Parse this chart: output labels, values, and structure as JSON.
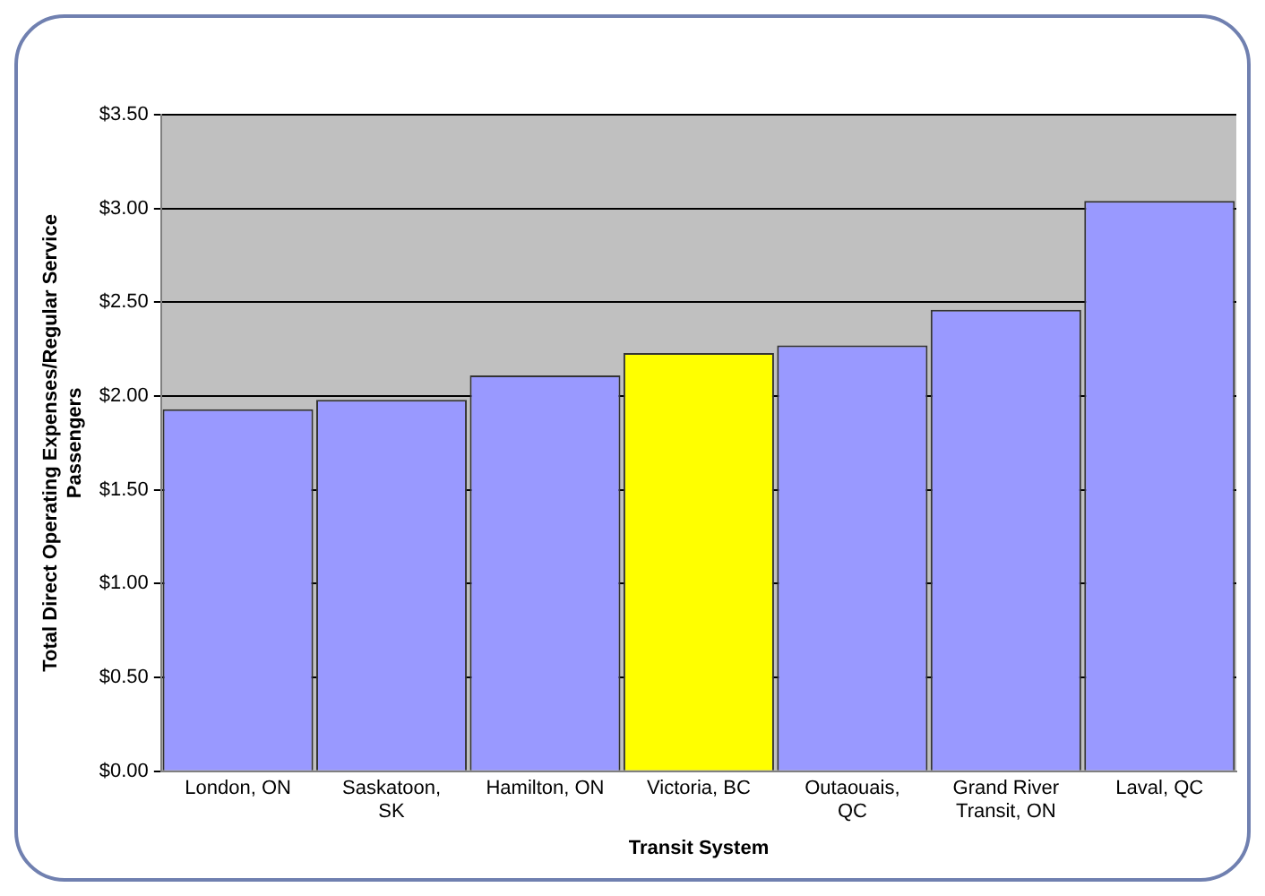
{
  "chart_data": {
    "type": "bar",
    "xlabel": "Transit System",
    "ylabel": "Total Direct Operating Expenses/Regular Service Passengers",
    "categories": [
      "London, ON",
      "Saskatoon, SK",
      "Hamilton, ON",
      "Victoria, BC",
      "Outaouais, QC",
      "Grand River Transit, ON",
      "Laval, QC"
    ],
    "values": [
      1.93,
      1.98,
      2.11,
      2.23,
      2.27,
      2.46,
      3.04
    ],
    "colors": [
      "#9999ff",
      "#9999ff",
      "#9999ff",
      "#ffff00",
      "#9999ff",
      "#9999ff",
      "#9999ff"
    ],
    "ylim": [
      0,
      3.5
    ],
    "yticks": [
      {
        "value": 0,
        "label": "$0.00"
      },
      {
        "value": 0.5,
        "label": "$0.50"
      },
      {
        "value": 1,
        "label": "$1.00"
      },
      {
        "value": 1.5,
        "label": "$1.50"
      },
      {
        "value": 2,
        "label": "$2.00"
      },
      {
        "value": 2.5,
        "label": "$2.50"
      },
      {
        "value": 3,
        "label": "$3.00"
      },
      {
        "value": 3.5,
        "label": "$3.50"
      }
    ],
    "grid": "y",
    "legend": false
  }
}
